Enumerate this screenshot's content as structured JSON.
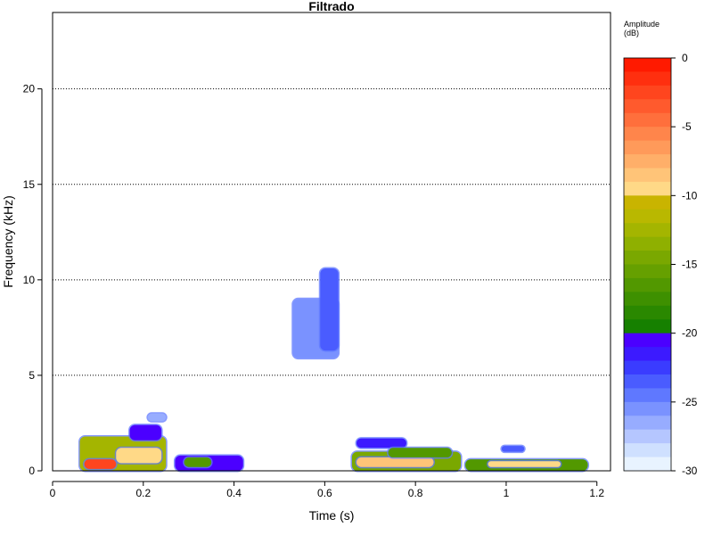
{
  "chart_data": {
    "type": "heatmap",
    "title": "Filtrado",
    "xlabel": "Time (s)",
    "ylabel": "Frequency (kHz)",
    "xlim": [
      0,
      1.23
    ],
    "ylim": [
      0,
      24
    ],
    "x_ticks": [
      0,
      0.2,
      0.4,
      0.6,
      0.8,
      1,
      1.2
    ],
    "x_tick_labels": [
      "0",
      "0.2",
      "0.4",
      "0.6",
      "0.8",
      "1",
      "1.2"
    ],
    "y_ticks": [
      0,
      5,
      10,
      15,
      20
    ],
    "y_tick_labels": [
      "0",
      "5",
      "10",
      "15",
      "20"
    ],
    "grid": "horizontal dotted lines at y ticks",
    "colorbar": {
      "title_line1": "Amplitude",
      "title_line2": "(dB)",
      "range": [
        -30,
        0
      ],
      "ticks": [
        0,
        -5,
        -10,
        -15,
        -20,
        -25,
        -30
      ],
      "tick_labels": [
        "0",
        "-5",
        "-10",
        "-15",
        "-20",
        "-25",
        "-30"
      ],
      "colors": [
        "#ff1a00",
        "#ff2f0f",
        "#ff451e",
        "#ff5a2d",
        "#ff6f3c",
        "#ff854b",
        "#ff9a5a",
        "#ffaf69",
        "#ffc478",
        "#ffd987",
        "#c9b400",
        "#b9b800",
        "#a4b500",
        "#8fb000",
        "#7aa800",
        "#66a000",
        "#529800",
        "#3e9000",
        "#2a8800",
        "#168000",
        "#4b00ff",
        "#3c1aff",
        "#3a3cff",
        "#4a5cff",
        "#5f78ff",
        "#7a92ff",
        "#97acff",
        "#b5c6ff",
        "#cfe0ff",
        "#e8f3ff"
      ]
    },
    "blobs": [
      {
        "t0": 0.06,
        "t1": 0.25,
        "f0": 0.0,
        "f1": 1.8,
        "level": -12
      },
      {
        "t0": 0.07,
        "t1": 0.14,
        "f0": 0.1,
        "f1": 0.6,
        "level": -2
      },
      {
        "t0": 0.14,
        "t1": 0.24,
        "f0": 0.4,
        "f1": 1.2,
        "level": -9
      },
      {
        "t0": 0.17,
        "t1": 0.24,
        "f0": 1.6,
        "f1": 2.4,
        "level": -20
      },
      {
        "t0": 0.21,
        "t1": 0.25,
        "f0": 2.6,
        "f1": 3.0,
        "level": -26
      },
      {
        "t0": 0.27,
        "t1": 0.42,
        "f0": 0.0,
        "f1": 0.8,
        "level": -20
      },
      {
        "t0": 0.29,
        "t1": 0.35,
        "f0": 0.2,
        "f1": 0.7,
        "level": -16
      },
      {
        "t0": 0.53,
        "t1": 0.63,
        "f0": 5.9,
        "f1": 9.0,
        "level": -25
      },
      {
        "t0": 0.59,
        "t1": 0.63,
        "f0": 6.3,
        "f1": 10.6,
        "level": -23
      },
      {
        "t0": 0.66,
        "t1": 0.9,
        "f0": 0.0,
        "f1": 1.0,
        "level": -14
      },
      {
        "t0": 0.67,
        "t1": 0.84,
        "f0": 0.2,
        "f1": 0.7,
        "level": -8
      },
      {
        "t0": 0.67,
        "t1": 0.78,
        "f0": 1.2,
        "f1": 1.7,
        "level": -21
      },
      {
        "t0": 0.74,
        "t1": 0.88,
        "f0": 0.7,
        "f1": 1.2,
        "level": -16
      },
      {
        "t0": 0.91,
        "t1": 1.18,
        "f0": 0.0,
        "f1": 0.6,
        "level": -16
      },
      {
        "t0": 0.96,
        "t1": 1.12,
        "f0": 0.2,
        "f1": 0.5,
        "level": -9
      },
      {
        "t0": 0.99,
        "t1": 1.04,
        "f0": 1.0,
        "f1": 1.3,
        "level": -23
      }
    ]
  }
}
